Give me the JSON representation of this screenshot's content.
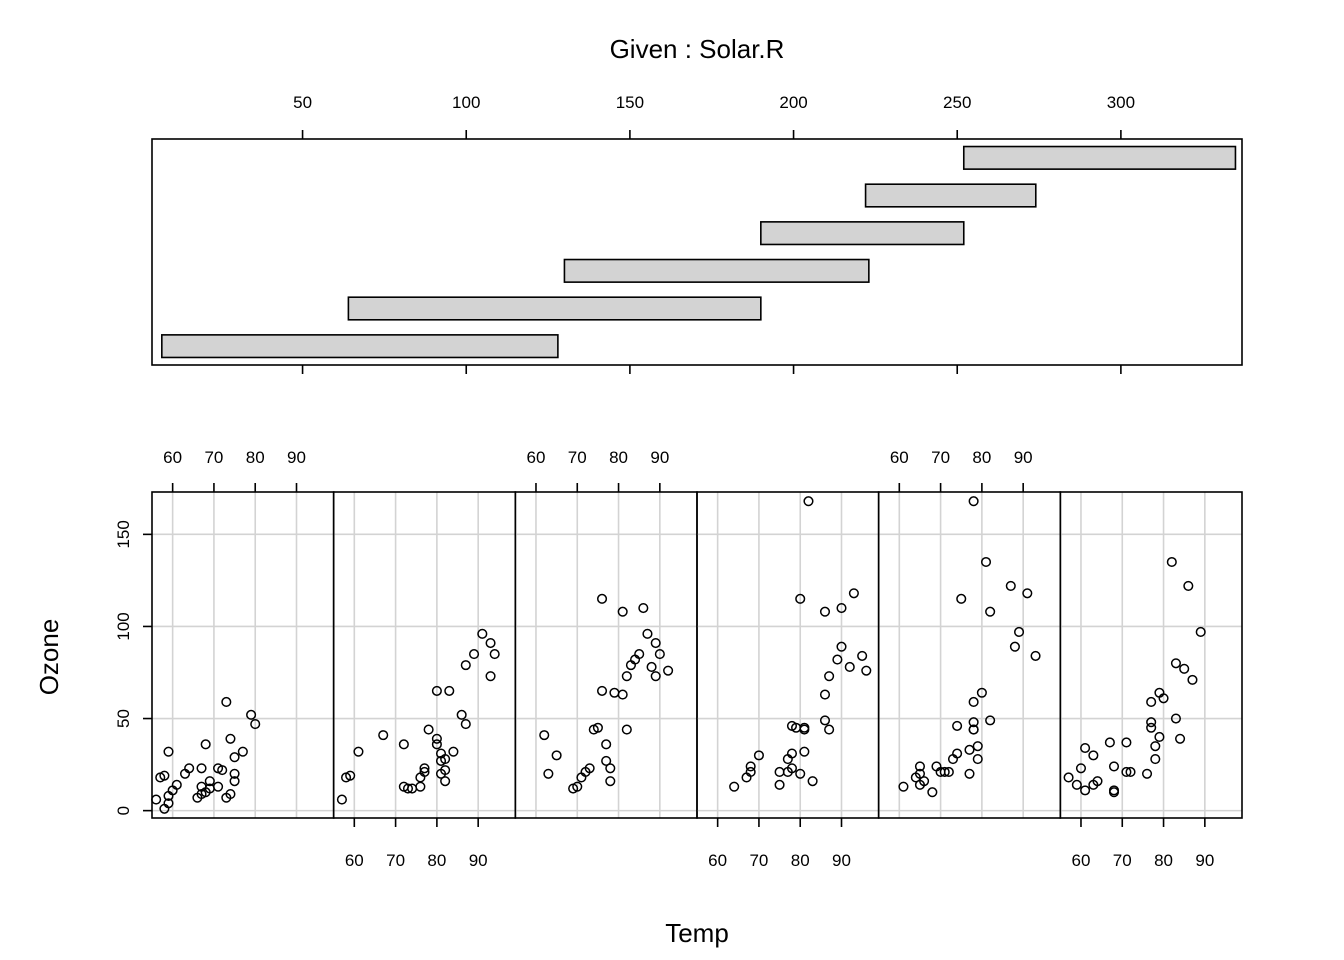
{
  "chart_data": {
    "type": "scatter",
    "title": "Given : Solar.R",
    "xlabel": "Temp",
    "ylabel": "Ozone",
    "grid": true,
    "given": {
      "variable": "Solar.R",
      "ticks": [
        50,
        100,
        150,
        200,
        250,
        300
      ],
      "range": [
        4,
        337
      ],
      "intervals": [
        [
          7,
          128
        ],
        [
          64,
          190
        ],
        [
          130,
          223
        ],
        [
          190,
          252
        ],
        [
          222,
          274
        ],
        [
          252,
          335
        ]
      ]
    },
    "panel_x": {
      "range": [
        55,
        99
      ],
      "ticks": [
        60,
        70,
        80,
        90
      ]
    },
    "panel_y": {
      "range": [
        -4,
        173
      ],
      "ticks": [
        0,
        50,
        100,
        150
      ]
    },
    "panels": [
      {
        "given_interval": [
          7,
          128
        ],
        "points": [
          [
            56,
            6
          ],
          [
            57,
            18
          ],
          [
            58,
            19
          ],
          [
            58,
            1
          ],
          [
            59,
            4
          ],
          [
            59,
            32
          ],
          [
            59,
            8
          ],
          [
            60,
            11
          ],
          [
            61,
            14
          ],
          [
            63,
            20
          ],
          [
            64,
            23
          ],
          [
            66,
            7
          ],
          [
            67,
            23
          ],
          [
            67,
            13
          ],
          [
            68,
            36
          ],
          [
            67,
            9
          ],
          [
            68,
            10
          ],
          [
            69,
            12
          ],
          [
            69,
            16
          ],
          [
            71,
            13
          ],
          [
            71,
            23
          ],
          [
            72,
            22
          ],
          [
            73,
            59
          ],
          [
            73,
            7
          ],
          [
            74,
            39
          ],
          [
            74,
            9
          ],
          [
            75,
            29
          ],
          [
            75,
            20
          ],
          [
            75,
            16
          ],
          [
            77,
            32
          ],
          [
            79,
            52
          ],
          [
            80,
            47
          ]
        ]
      },
      {
        "given_interval": [
          64,
          190
        ],
        "points": [
          [
            57,
            6
          ],
          [
            58,
            18
          ],
          [
            59,
            19
          ],
          [
            61,
            32
          ],
          [
            67,
            41
          ],
          [
            72,
            13
          ],
          [
            72,
            36
          ],
          [
            73,
            12
          ],
          [
            74,
            12
          ],
          [
            76,
            13
          ],
          [
            76,
            18
          ],
          [
            77,
            23
          ],
          [
            77,
            21
          ],
          [
            78,
            44
          ],
          [
            80,
            65
          ],
          [
            80,
            39
          ],
          [
            80,
            36
          ],
          [
            81,
            31
          ],
          [
            82,
            22
          ],
          [
            81,
            27
          ],
          [
            81,
            20
          ],
          [
            82,
            16
          ],
          [
            82,
            28
          ],
          [
            83,
            65
          ],
          [
            84,
            32
          ],
          [
            86,
            52
          ],
          [
            87,
            47
          ],
          [
            87,
            79
          ],
          [
            89,
            85
          ],
          [
            91,
            96
          ],
          [
            93,
            91
          ],
          [
            93,
            73
          ],
          [
            94,
            85
          ]
        ]
      },
      {
        "given_interval": [
          130,
          223
        ],
        "points": [
          [
            62,
            41
          ],
          [
            63,
            20
          ],
          [
            65,
            30
          ],
          [
            69,
            12
          ],
          [
            70,
            13
          ],
          [
            71,
            18
          ],
          [
            72,
            21
          ],
          [
            73,
            23
          ],
          [
            74,
            44
          ],
          [
            75,
            45
          ],
          [
            76,
            65
          ],
          [
            76,
            115
          ],
          [
            77,
            36
          ],
          [
            77,
            27
          ],
          [
            78,
            23
          ],
          [
            78,
            16
          ],
          [
            79,
            64
          ],
          [
            81,
            63
          ],
          [
            81,
            108
          ],
          [
            82,
            44
          ],
          [
            82,
            73
          ],
          [
            83,
            79
          ],
          [
            84,
            82
          ],
          [
            85,
            85
          ],
          [
            86,
            110
          ],
          [
            87,
            96
          ],
          [
            88,
            78
          ],
          [
            89,
            91
          ],
          [
            89,
            73
          ],
          [
            90,
            85
          ],
          [
            92,
            76
          ]
        ]
      },
      {
        "given_interval": [
          190,
          252
        ],
        "points": [
          [
            64,
            13
          ],
          [
            67,
            18
          ],
          [
            68,
            21
          ],
          [
            68,
            24
          ],
          [
            70,
            30
          ],
          [
            75,
            14
          ],
          [
            75,
            21
          ],
          [
            77,
            28
          ],
          [
            77,
            21
          ],
          [
            78,
            23
          ],
          [
            78,
            46
          ],
          [
            78,
            31
          ],
          [
            79,
            45
          ],
          [
            80,
            115
          ],
          [
            80,
            20
          ],
          [
            81,
            44
          ],
          [
            81,
            32
          ],
          [
            81,
            45
          ],
          [
            82,
            168
          ],
          [
            83,
            16
          ],
          [
            86,
            108
          ],
          [
            86,
            63
          ],
          [
            86,
            49
          ],
          [
            87,
            44
          ],
          [
            87,
            73
          ],
          [
            89,
            82
          ],
          [
            90,
            110
          ],
          [
            90,
            89
          ],
          [
            92,
            78
          ],
          [
            93,
            118
          ],
          [
            95,
            84
          ],
          [
            96,
            76
          ]
        ]
      },
      {
        "given_interval": [
          222,
          274
        ],
        "points": [
          [
            61,
            13
          ],
          [
            64,
            18
          ],
          [
            65,
            24
          ],
          [
            65,
            14
          ],
          [
            65,
            20
          ],
          [
            66,
            16
          ],
          [
            68,
            10
          ],
          [
            69,
            24
          ],
          [
            70,
            21
          ],
          [
            71,
            21
          ],
          [
            72,
            21
          ],
          [
            73,
            28
          ],
          [
            74,
            31
          ],
          [
            74,
            46
          ],
          [
            75,
            115
          ],
          [
            77,
            20
          ],
          [
            77,
            33
          ],
          [
            78,
            168
          ],
          [
            78,
            44
          ],
          [
            78,
            48
          ],
          [
            78,
            59
          ],
          [
            78,
            44
          ],
          [
            79,
            28
          ],
          [
            79,
            35
          ],
          [
            80,
            64
          ],
          [
            81,
            135
          ],
          [
            82,
            108
          ],
          [
            82,
            49
          ],
          [
            87,
            122
          ],
          [
            88,
            89
          ],
          [
            89,
            97
          ],
          [
            91,
            118
          ],
          [
            93,
            84
          ]
        ]
      },
      {
        "given_interval": [
          252,
          335
        ],
        "points": [
          [
            57,
            18
          ],
          [
            59,
            14
          ],
          [
            60,
            23
          ],
          [
            61,
            11
          ],
          [
            61,
            34
          ],
          [
            63,
            14
          ],
          [
            63,
            30
          ],
          [
            64,
            16
          ],
          [
            67,
            37
          ],
          [
            68,
            11
          ],
          [
            68,
            10
          ],
          [
            68,
            24
          ],
          [
            71,
            21
          ],
          [
            71,
            37
          ],
          [
            72,
            21
          ],
          [
            76,
            20
          ],
          [
            77,
            59
          ],
          [
            77,
            48
          ],
          [
            77,
            45
          ],
          [
            78,
            35
          ],
          [
            78,
            28
          ],
          [
            79,
            40
          ],
          [
            79,
            64
          ],
          [
            80,
            61
          ],
          [
            82,
            135
          ],
          [
            83,
            80
          ],
          [
            83,
            50
          ],
          [
            84,
            39
          ],
          [
            85,
            77
          ],
          [
            86,
            122
          ],
          [
            87,
            71
          ],
          [
            89,
            97
          ]
        ]
      }
    ]
  }
}
